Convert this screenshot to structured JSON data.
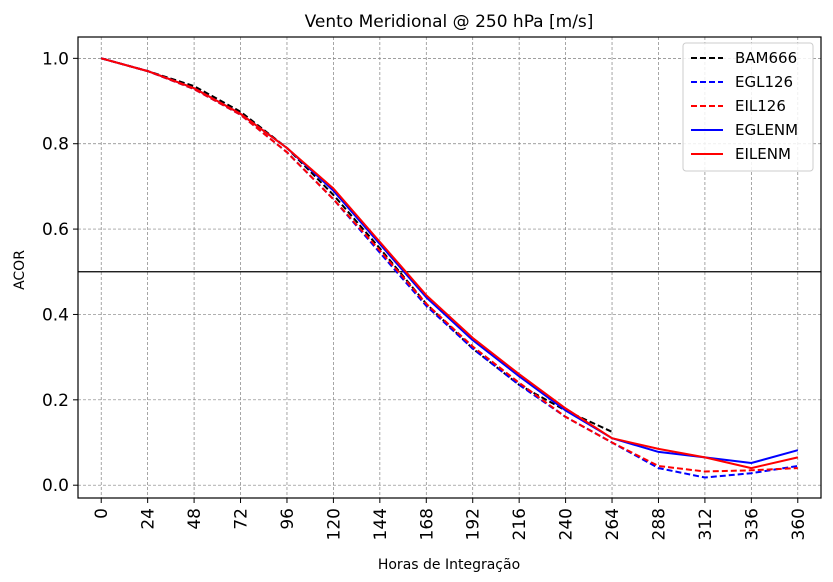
{
  "chart_data": {
    "type": "line",
    "title": "Vento Meridional @ 250 hPa [m/s]",
    "xlabel": "Horas de Integração",
    "ylabel": "ACOR",
    "x": [
      0,
      24,
      48,
      72,
      96,
      120,
      144,
      168,
      192,
      216,
      240,
      264,
      288,
      312,
      336,
      360
    ],
    "xticks": [
      "0",
      "24",
      "48",
      "72",
      "96",
      "120",
      "144",
      "168",
      "192",
      "216",
      "240",
      "264",
      "288",
      "312",
      "336",
      "360"
    ],
    "yticks": [
      "0.0",
      "0.2",
      "0.4",
      "0.6",
      "0.8",
      "1.0"
    ],
    "xlim": [
      -12,
      372
    ],
    "ylim": [
      -0.03,
      1.05
    ],
    "grid": true,
    "legend_position": "top-right",
    "reference_line": {
      "y": 0.5,
      "color": "#000000"
    },
    "series": [
      {
        "name": "BAM666",
        "color": "#000000",
        "style": "dashed",
        "x": [
          0,
          24,
          48,
          72,
          96,
          120,
          144,
          168,
          192,
          216,
          240,
          264
        ],
        "values": [
          1.0,
          0.97,
          0.935,
          0.875,
          0.79,
          0.68,
          0.555,
          0.425,
          0.32,
          0.235,
          0.175,
          0.125
        ]
      },
      {
        "name": "EGL126",
        "color": "#0000ff",
        "style": "dashed",
        "x": [
          0,
          24,
          48,
          72,
          96,
          120,
          144,
          168,
          192,
          216,
          240,
          264,
          288,
          312,
          336,
          360
        ],
        "values": [
          1.0,
          0.97,
          0.928,
          0.868,
          0.78,
          0.67,
          0.545,
          0.42,
          0.32,
          0.235,
          0.16,
          0.1,
          0.04,
          0.018,
          0.028,
          0.045
        ]
      },
      {
        "name": "EIL126",
        "color": "#ff0000",
        "style": "dashed",
        "x": [
          0,
          24,
          48,
          72,
          96,
          120,
          144,
          168,
          192,
          216,
          240,
          264,
          288,
          312,
          336,
          360
        ],
        "values": [
          1.0,
          0.97,
          0.928,
          0.868,
          0.78,
          0.67,
          0.55,
          0.425,
          0.325,
          0.24,
          0.16,
          0.1,
          0.045,
          0.032,
          0.035,
          0.04
        ]
      },
      {
        "name": "EGLENM",
        "color": "#0000ff",
        "style": "solid",
        "x": [
          0,
          24,
          48,
          72,
          96,
          120,
          144,
          168,
          192,
          216,
          240,
          264,
          288,
          312,
          336,
          360
        ],
        "values": [
          1.0,
          0.97,
          0.93,
          0.87,
          0.79,
          0.69,
          0.565,
          0.44,
          0.34,
          0.255,
          0.175,
          0.11,
          0.078,
          0.065,
          0.052,
          0.082
        ]
      },
      {
        "name": "EILENM",
        "color": "#ff0000",
        "style": "solid",
        "x": [
          0,
          24,
          48,
          72,
          96,
          120,
          144,
          168,
          192,
          216,
          240,
          264,
          288,
          312,
          336,
          360
        ],
        "values": [
          1.0,
          0.97,
          0.93,
          0.87,
          0.79,
          0.695,
          0.57,
          0.445,
          0.345,
          0.26,
          0.18,
          0.11,
          0.085,
          0.065,
          0.04,
          0.065
        ]
      }
    ]
  }
}
